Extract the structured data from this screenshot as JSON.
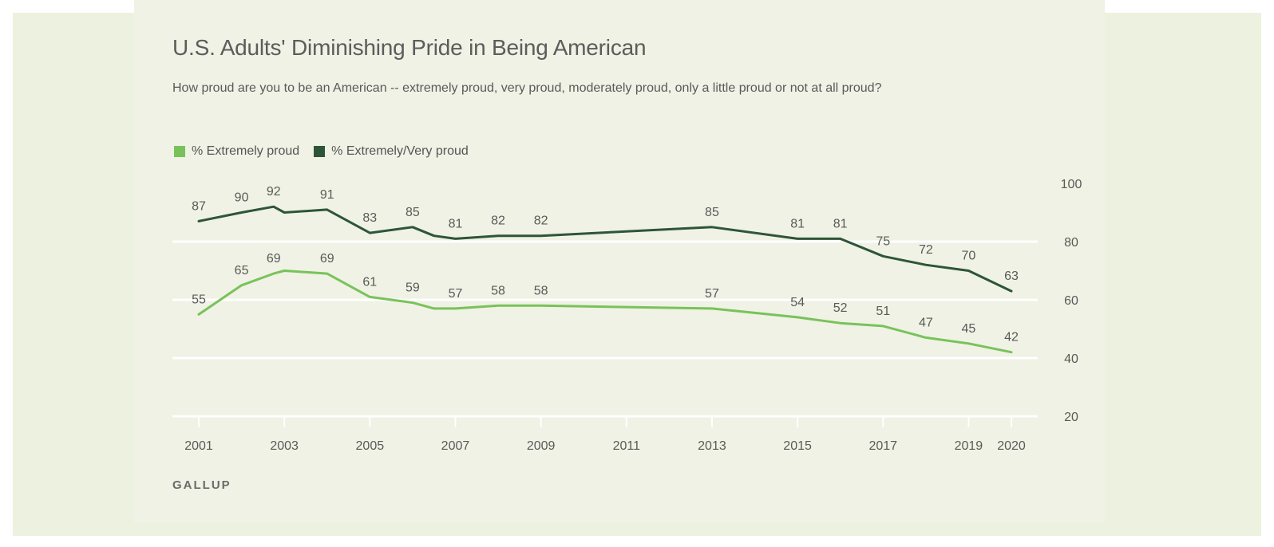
{
  "title": "U.S. Adults' Diminishing Pride in Being American",
  "subtitle": "How proud are you to be an American -- extremely proud, very proud, moderately proud, only a little proud or not at all proud?",
  "source": "GALLUP",
  "colors": {
    "extremely": "#79c25b",
    "extremely_very": "#2e5537",
    "grid": "#ffffff",
    "text": "#5a5a5a"
  },
  "chart_data": {
    "type": "line",
    "title": "U.S. Adults' Diminishing Pride in Being American",
    "xlabel": "",
    "ylabel": "",
    "ylim": [
      20,
      100
    ],
    "yticks": [
      20,
      40,
      60,
      80,
      100
    ],
    "xlim": [
      2001,
      2020
    ],
    "xticks": [
      "2001",
      "2003",
      "2005",
      "2007",
      "2009",
      "2011",
      "2013",
      "2015",
      "2017",
      "2019",
      "2020"
    ],
    "grid": true,
    "legend": "top-left",
    "series": [
      {
        "name": "% Extremely proud",
        "color": "#79c25b",
        "points": [
          {
            "x": 2001,
            "y": 55
          },
          {
            "x": 2002,
            "y": 65
          },
          {
            "x": 2002.75,
            "y": 69
          },
          {
            "x": 2003,
            "y": 70
          },
          {
            "x": 2004,
            "y": 69
          },
          {
            "x": 2005,
            "y": 61
          },
          {
            "x": 2006,
            "y": 59
          },
          {
            "x": 2006.5,
            "y": 57
          },
          {
            "x": 2007,
            "y": 57
          },
          {
            "x": 2008,
            "y": 58
          },
          {
            "x": 2009,
            "y": 58
          },
          {
            "x": 2013,
            "y": 57
          },
          {
            "x": 2015,
            "y": 54
          },
          {
            "x": 2016,
            "y": 52
          },
          {
            "x": 2017,
            "y": 51
          },
          {
            "x": 2018,
            "y": 47
          },
          {
            "x": 2019,
            "y": 45
          },
          {
            "x": 2020,
            "y": 42
          }
        ],
        "labels": [
          {
            "x": 2001,
            "text": "55"
          },
          {
            "x": 2002,
            "text": "65"
          },
          {
            "x": 2002.75,
            "text": "69"
          },
          {
            "x": 2004,
            "text": "69"
          },
          {
            "x": 2005,
            "text": "61"
          },
          {
            "x": 2006,
            "text": "59"
          },
          {
            "x": 2007,
            "text": "57"
          },
          {
            "x": 2008,
            "text": "58"
          },
          {
            "x": 2009,
            "text": "58"
          },
          {
            "x": 2013,
            "text": "57"
          },
          {
            "x": 2015,
            "text": "54"
          },
          {
            "x": 2016,
            "text": "52"
          },
          {
            "x": 2017,
            "text": "51"
          },
          {
            "x": 2018,
            "text": "47"
          },
          {
            "x": 2019,
            "text": "45"
          },
          {
            "x": 2020,
            "text": "42"
          }
        ]
      },
      {
        "name": "% Extremely/Very proud",
        "color": "#2e5537",
        "points": [
          {
            "x": 2001,
            "y": 87
          },
          {
            "x": 2002,
            "y": 90
          },
          {
            "x": 2002.75,
            "y": 92
          },
          {
            "x": 2003,
            "y": 90
          },
          {
            "x": 2004,
            "y": 91
          },
          {
            "x": 2005,
            "y": 83
          },
          {
            "x": 2006,
            "y": 85
          },
          {
            "x": 2006.5,
            "y": 82
          },
          {
            "x": 2007,
            "y": 81
          },
          {
            "x": 2008,
            "y": 82
          },
          {
            "x": 2009,
            "y": 82
          },
          {
            "x": 2013,
            "y": 85
          },
          {
            "x": 2015,
            "y": 81
          },
          {
            "x": 2016,
            "y": 81
          },
          {
            "x": 2017,
            "y": 75
          },
          {
            "x": 2018,
            "y": 72
          },
          {
            "x": 2019,
            "y": 70
          },
          {
            "x": 2020,
            "y": 63
          }
        ],
        "labels": [
          {
            "x": 2001,
            "text": "87"
          },
          {
            "x": 2002,
            "text": "90"
          },
          {
            "x": 2002.75,
            "text": "92"
          },
          {
            "x": 2004,
            "text": "91"
          },
          {
            "x": 2005,
            "text": "83"
          },
          {
            "x": 2006,
            "text": "85"
          },
          {
            "x": 2007,
            "text": "81"
          },
          {
            "x": 2008,
            "text": "82"
          },
          {
            "x": 2009,
            "text": "82"
          },
          {
            "x": 2013,
            "text": "85"
          },
          {
            "x": 2015,
            "text": "81"
          },
          {
            "x": 2016,
            "text": "81"
          },
          {
            "x": 2017,
            "text": "75"
          },
          {
            "x": 2018,
            "text": "72"
          },
          {
            "x": 2019,
            "text": "70"
          },
          {
            "x": 2020,
            "text": "63"
          }
        ]
      }
    ]
  }
}
